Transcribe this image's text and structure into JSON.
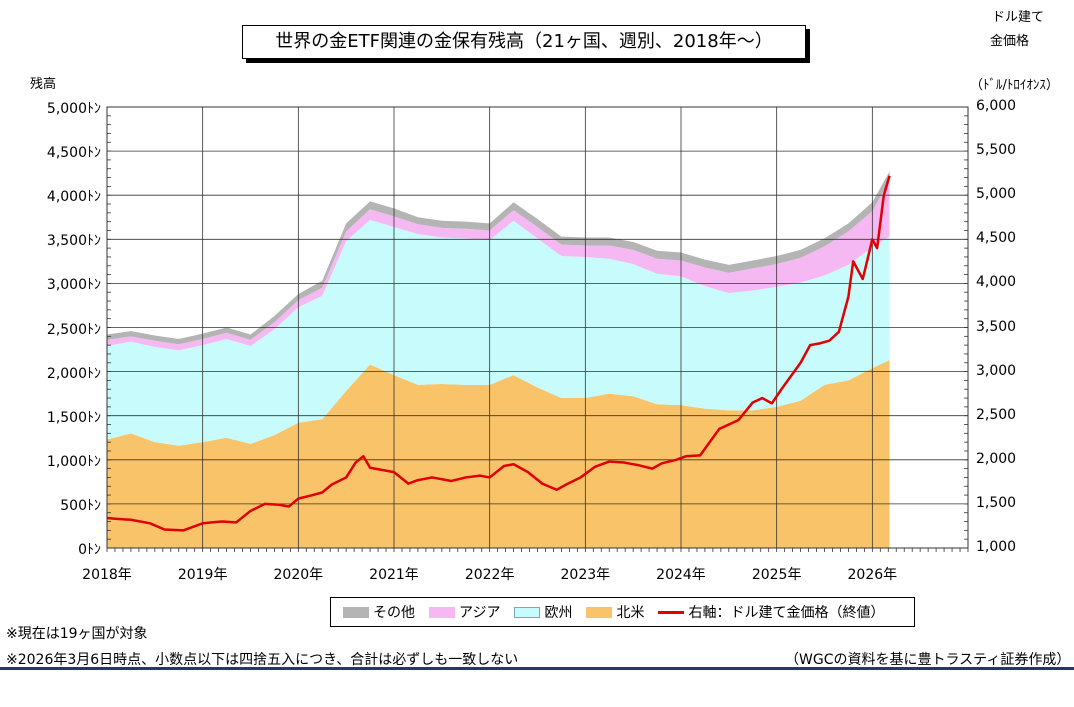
{
  "title": "世界の金ETF関連の金保有残高（21ヶ国、週別、2018年～）",
  "left_axis_label": "残高",
  "right_axis_label_1": "ドル建て",
  "right_axis_label_2": "金価格",
  "right_axis_label_3": "（ﾄﾞﾙ/ﾄﾛｲｵﾝｽ）",
  "left_ticks": [
    "0ﾄﾝ",
    "500ﾄﾝ",
    "1,000ﾄﾝ",
    "1,500ﾄﾝ",
    "2,000ﾄﾝ",
    "2,500ﾄﾝ",
    "3,000ﾄﾝ",
    "3,500ﾄﾝ",
    "4,000ﾄﾝ",
    "4,500ﾄﾝ",
    "5,000ﾄﾝ"
  ],
  "right_ticks": [
    "1,000",
    "1,500",
    "2,000",
    "2,500",
    "3,000",
    "3,500",
    "4,000",
    "4,500",
    "5,000",
    "5,500",
    "6,000"
  ],
  "x_ticks": [
    "2018年",
    "2019年",
    "2020年",
    "2021年",
    "2022年",
    "2023年",
    "2024年",
    "2025年",
    "2026年"
  ],
  "legend": {
    "other": "その他",
    "asia": "アジア",
    "europe": "欧州",
    "na": "北米",
    "gold": "右軸：ドル建て金価格（終値）"
  },
  "notes": {
    "note1": "※現在は19ヶ国が対象",
    "note2": "※2026年3月6日時点、小数点以下は四捨五入につき、合計は必ずしも一致しない",
    "source": "（WGCの資料を基に豊トラスティ証券作成）"
  },
  "colors": {
    "other": "#b4b4b4",
    "asia": "#f6b8f3",
    "europe": "#c8fbfb",
    "na": "#f9c469",
    "gold": "#e00000"
  },
  "chart_data": {
    "type": "area",
    "x": [
      2018.0,
      2018.25,
      2018.5,
      2018.75,
      2019.0,
      2019.25,
      2019.5,
      2019.75,
      2020.0,
      2020.25,
      2020.5,
      2020.75,
      2021.0,
      2021.25,
      2021.5,
      2021.75,
      2022.0,
      2022.25,
      2022.5,
      2022.75,
      2023.0,
      2023.25,
      2023.5,
      2023.75,
      2024.0,
      2024.25,
      2024.5,
      2024.75,
      2025.0,
      2025.25,
      2025.5,
      2025.75,
      2026.0,
      2026.18
    ],
    "series": [
      {
        "name": "北米",
        "values": [
          1230,
          1300,
          1200,
          1160,
          1200,
          1250,
          1180,
          1280,
          1420,
          1460,
          1780,
          2080,
          1960,
          1850,
          1860,
          1850,
          1850,
          1960,
          1820,
          1700,
          1700,
          1750,
          1720,
          1630,
          1620,
          1580,
          1560,
          1560,
          1600,
          1670,
          1850,
          1900,
          2040,
          2130
        ]
      },
      {
        "name": "欧州",
        "values": [
          1060,
          1040,
          1080,
          1080,
          1100,
          1120,
          1110,
          1200,
          1310,
          1400,
          1700,
          1640,
          1680,
          1710,
          1660,
          1660,
          1640,
          1750,
          1690,
          1610,
          1600,
          1530,
          1500,
          1480,
          1460,
          1390,
          1330,
          1360,
          1360,
          1340,
          1240,
          1310,
          1370,
          1400
        ]
      },
      {
        "name": "アジア",
        "values": [
          70,
          60,
          70,
          70,
          70,
          70,
          70,
          80,
          80,
          90,
          110,
          120,
          120,
          110,
          110,
          110,
          110,
          120,
          130,
          130,
          130,
          150,
          160,
          170,
          180,
          210,
          230,
          250,
          260,
          280,
          330,
          380,
          410,
          640
        ]
      },
      {
        "name": "その他",
        "values": [
          60,
          60,
          60,
          60,
          60,
          60,
          60,
          70,
          70,
          80,
          90,
          90,
          90,
          80,
          80,
          80,
          80,
          90,
          90,
          90,
          90,
          90,
          90,
          90,
          90,
          90,
          90,
          90,
          90,
          90,
          90,
          90,
          100,
          100
        ]
      }
    ],
    "gold": {
      "name": "右軸：ドル建て金価格（終値）",
      "x": [
        2018.0,
        2018.1,
        2018.25,
        2018.45,
        2018.6,
        2018.8,
        2019.0,
        2019.2,
        2019.35,
        2019.5,
        2019.65,
        2019.8,
        2019.9,
        2020.0,
        2020.15,
        2020.25,
        2020.35,
        2020.5,
        2020.6,
        2020.68,
        2020.75,
        2020.9,
        2021.0,
        2021.15,
        2021.25,
        2021.4,
        2021.6,
        2021.75,
        2021.9,
        2022.0,
        2022.15,
        2022.25,
        2022.4,
        2022.55,
        2022.7,
        2022.8,
        2022.95,
        2023.1,
        2023.25,
        2023.4,
        2023.55,
        2023.7,
        2023.8,
        2023.95,
        2024.05,
        2024.2,
        2024.3,
        2024.4,
        2024.5,
        2024.6,
        2024.75,
        2024.85,
        2024.95,
        2025.05,
        2025.15,
        2025.25,
        2025.35,
        2025.45,
        2025.55,
        2025.65,
        2025.75,
        2025.8,
        2025.9,
        2026.0,
        2026.05,
        2026.12,
        2026.18
      ],
      "values": [
        1340,
        1330,
        1320,
        1280,
        1210,
        1200,
        1280,
        1300,
        1290,
        1420,
        1500,
        1490,
        1470,
        1560,
        1600,
        1630,
        1720,
        1800,
        1970,
        2040,
        1910,
        1880,
        1860,
        1730,
        1770,
        1800,
        1760,
        1800,
        1820,
        1800,
        1930,
        1950,
        1860,
        1730,
        1660,
        1720,
        1800,
        1920,
        1980,
        1970,
        1940,
        1900,
        1960,
        2000,
        2040,
        2050,
        2200,
        2350,
        2400,
        2450,
        2650,
        2700,
        2640,
        2800,
        2950,
        3100,
        3300,
        3320,
        3350,
        3450,
        3850,
        4250,
        4050,
        4500,
        4400,
        5000,
        5220
      ]
    },
    "x_range": [
      2018.0,
      2027.0
    ],
    "y_left_range": [
      0,
      5000
    ],
    "y_right_range": [
      1000,
      6000
    ],
    "grid": true,
    "legend_position": "bottom"
  }
}
